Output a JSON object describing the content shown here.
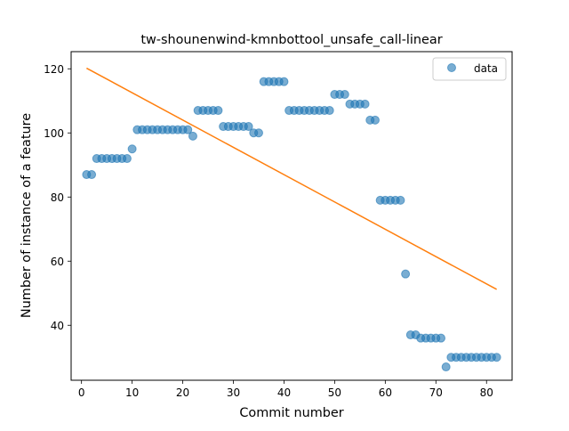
{
  "chart_data": {
    "type": "scatter",
    "title": "tw-shounenwind-kmnbottool_unsafe_call-linear",
    "xlabel": "Commit number",
    "ylabel": "Number of instance of a feature",
    "xlim": [
      -2.05,
      85.05
    ],
    "ylim": [
      22.85,
      125.35
    ],
    "xticks": [
      0,
      10,
      20,
      30,
      40,
      50,
      60,
      70,
      80
    ],
    "yticks": [
      40,
      60,
      80,
      100,
      120
    ],
    "grid": false,
    "legend_position": "top-right",
    "series": [
      {
        "name": "data",
        "kind": "scatter",
        "color": "#1f77b4",
        "x": [
          1,
          2,
          3,
          4,
          5,
          6,
          7,
          8,
          9,
          10,
          11,
          12,
          13,
          14,
          15,
          16,
          17,
          18,
          19,
          20,
          21,
          22,
          23,
          24,
          25,
          26,
          27,
          28,
          29,
          30,
          31,
          32,
          33,
          34,
          35,
          36,
          37,
          38,
          39,
          40,
          41,
          42,
          43,
          44,
          45,
          46,
          47,
          48,
          49,
          50,
          51,
          52,
          53,
          54,
          55,
          56,
          57,
          58,
          59,
          60,
          61,
          62,
          63,
          64,
          65,
          66,
          67,
          68,
          69,
          70,
          71,
          72,
          73,
          74,
          75,
          76,
          77,
          78,
          79,
          80,
          81,
          82
        ],
        "y": [
          87,
          87,
          92,
          92,
          92,
          92,
          92,
          92,
          92,
          95,
          101,
          101,
          101,
          101,
          101,
          101,
          101,
          101,
          101,
          101,
          101,
          99,
          107,
          107,
          107,
          107,
          107,
          102,
          102,
          102,
          102,
          102,
          102,
          100,
          100,
          116,
          116,
          116,
          116,
          116,
          107,
          107,
          107,
          107,
          107,
          107,
          107,
          107,
          107,
          112,
          112,
          112,
          109,
          109,
          109,
          109,
          104,
          104,
          79,
          79,
          79,
          79,
          79,
          56,
          37,
          37,
          36,
          36,
          36,
          36,
          36,
          27,
          30,
          30,
          30,
          30,
          30,
          30,
          30,
          30,
          30,
          30
        ]
      },
      {
        "name": "",
        "kind": "line",
        "color": "#ff7f0e",
        "x": [
          1,
          82
        ],
        "y": [
          120.2,
          51.2
        ]
      }
    ]
  }
}
